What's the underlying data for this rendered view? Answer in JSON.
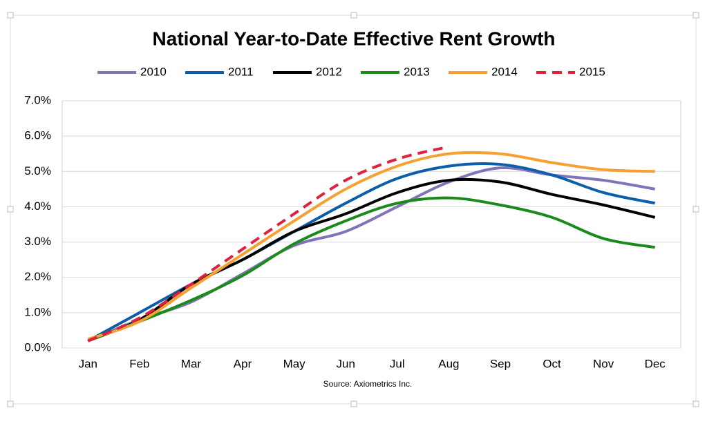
{
  "chart_data": {
    "type": "line",
    "title": "National Year-to-Date Effective Rent Growth",
    "source": "Source: Axiometrics Inc.",
    "categories": [
      "Jan",
      "Feb",
      "Mar",
      "Apr",
      "May",
      "Jun",
      "Jul",
      "Aug",
      "Sep",
      "Oct",
      "Nov",
      "Dec"
    ],
    "series": [
      {
        "name": "2010",
        "color": "#8074b8",
        "values": [
          0.2,
          0.8,
          1.3,
          2.1,
          2.9,
          3.3,
          4.0,
          4.7,
          5.1,
          4.9,
          4.75,
          4.5
        ]
      },
      {
        "name": "2011",
        "color": "#0c5ea8",
        "values": [
          0.2,
          1.0,
          1.8,
          2.5,
          3.3,
          4.1,
          4.8,
          5.15,
          5.2,
          4.9,
          4.4,
          4.1
        ]
      },
      {
        "name": "2012",
        "color": "#000000",
        "values": [
          0.2,
          0.8,
          1.8,
          2.5,
          3.3,
          3.8,
          4.4,
          4.75,
          4.7,
          4.35,
          4.05,
          3.7
        ]
      },
      {
        "name": "2013",
        "color": "#1a8a1a",
        "values": [
          0.2,
          0.75,
          1.35,
          2.05,
          2.95,
          3.6,
          4.1,
          4.25,
          4.05,
          3.7,
          3.1,
          2.85
        ]
      },
      {
        "name": "2014",
        "color": "#f5a030",
        "values": [
          0.25,
          0.75,
          1.7,
          2.65,
          3.6,
          4.5,
          5.15,
          5.5,
          5.5,
          5.25,
          5.05,
          5.0
        ]
      },
      {
        "name": "2015",
        "color": "#e0203c",
        "dashed": true,
        "values": [
          0.2,
          0.85,
          1.8,
          2.8,
          3.8,
          4.75,
          5.35,
          5.7,
          null,
          null,
          null,
          null
        ]
      }
    ],
    "ylim": [
      0,
      7
    ],
    "yticks": [
      {
        "value": 0,
        "label": "0.0%"
      },
      {
        "value": 1,
        "label": "1.0%"
      },
      {
        "value": 2,
        "label": "2.0%"
      },
      {
        "value": 3,
        "label": "3.0%"
      },
      {
        "value": 4,
        "label": "4.0%"
      },
      {
        "value": 5,
        "label": "5.0%"
      },
      {
        "value": 6,
        "label": "6.0%"
      },
      {
        "value": 7,
        "label": "7.0%"
      }
    ],
    "grid": true,
    "legend": "top"
  }
}
